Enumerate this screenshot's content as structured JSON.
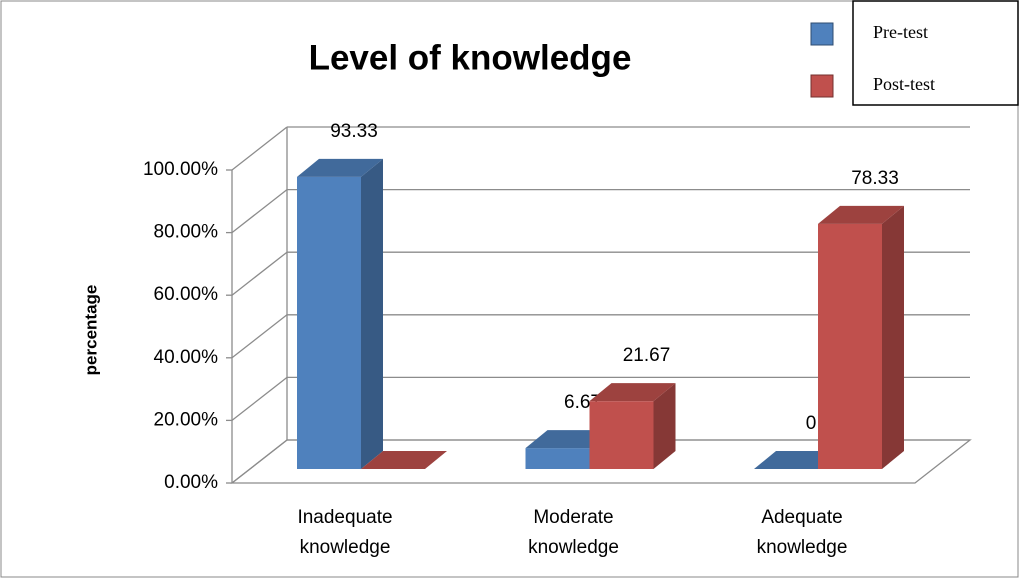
{
  "chart_data": {
    "type": "bar3d",
    "title": "Level of knowledge",
    "y_label": "percentage",
    "categories": [
      "Inadequate knowledge",
      "Moderate knowledge",
      "Adequate knowledge"
    ],
    "series": [
      {
        "name": "Pre-test",
        "color": "#4f81bd",
        "values": [
          93.33,
          6.67,
          0
        ]
      },
      {
        "name": "Post-test",
        "color": "#c0504d",
        "values": [
          0,
          21.67,
          78.33
        ],
        "value_labels": [
          null,
          "21.67",
          "78.33"
        ]
      }
    ],
    "ylim": [
      0,
      100
    ],
    "yticks": [
      {
        "value": 0,
        "label": "0.00%"
      },
      {
        "value": 20,
        "label": "20.00%"
      },
      {
        "value": 40,
        "label": "40.00%"
      },
      {
        "value": 60,
        "label": "60.00%"
      },
      {
        "value": 80,
        "label": "80.00%"
      },
      {
        "value": 100,
        "label": "100.00%"
      }
    ],
    "grid": true,
    "legend": "top-right"
  }
}
